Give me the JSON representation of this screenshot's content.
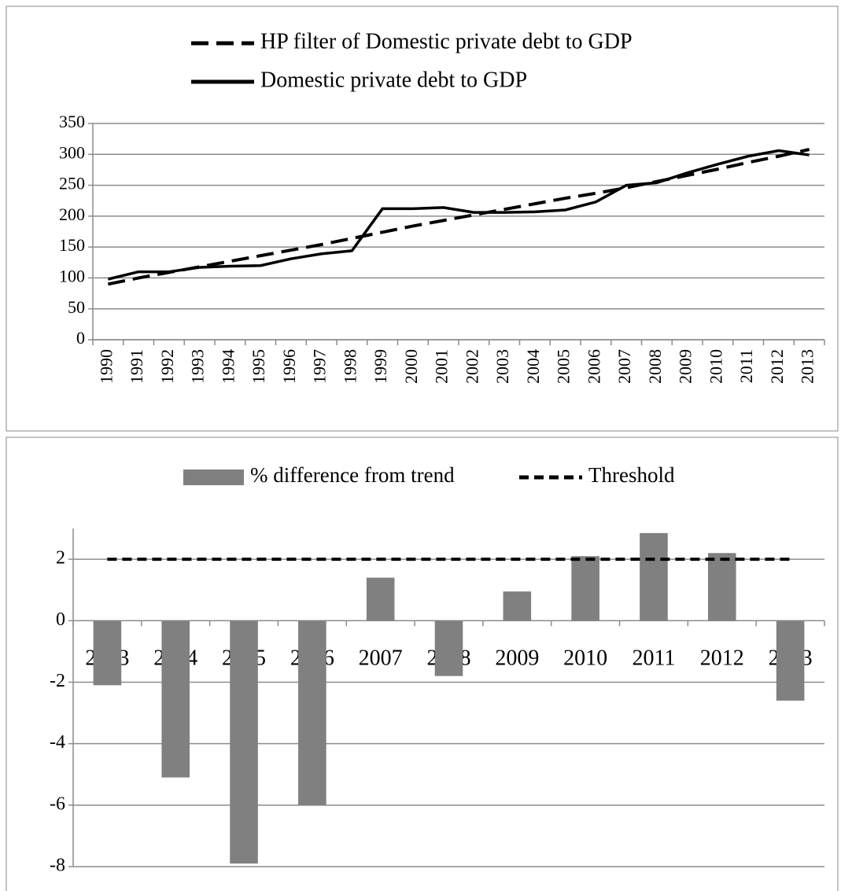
{
  "chart_data": [
    {
      "type": "line",
      "categories": [
        "1990",
        "1991",
        "1992",
        "1993",
        "1994",
        "1995",
        "1996",
        "1997",
        "1998",
        "1999",
        "2000",
        "2001",
        "2002",
        "2003",
        "2004",
        "2005",
        "2006",
        "2007",
        "2008",
        "2009",
        "2010",
        "2011",
        "2012",
        "2013"
      ],
      "series": [
        {
          "name": "HP filter of Domestic private debt to GDP",
          "color": "#000000",
          "dashed": true,
          "values": [
            90,
            100,
            109,
            118,
            127,
            136,
            145,
            154,
            164,
            174,
            184,
            193,
            202,
            211,
            220,
            229,
            237,
            246,
            256,
            266,
            276,
            287,
            297,
            308
          ]
        },
        {
          "name": "Domestic private debt to GDP",
          "color": "#000000",
          "dashed": false,
          "values": [
            98,
            110,
            110,
            117,
            119,
            120,
            131,
            139,
            144,
            212,
            212,
            214,
            206,
            206,
            207,
            210,
            223,
            250,
            254,
            270,
            284,
            297,
            306,
            299
          ]
        }
      ],
      "ylim": [
        0,
        350
      ],
      "yticks": [
        0,
        50,
        100,
        150,
        200,
        250,
        300,
        350
      ],
      "grid": true
    },
    {
      "type": "bar",
      "categories": [
        "2003",
        "2004",
        "2005",
        "2006",
        "2007",
        "2008",
        "2009",
        "2010",
        "2011",
        "2012",
        "2013"
      ],
      "series": [
        {
          "name": "% difference from trend",
          "type": "bar",
          "color": "#808080",
          "values": [
            -2.1,
            -5.1,
            -7.9,
            -6.0,
            1.4,
            -1.8,
            0.95,
            2.1,
            2.85,
            2.2,
            -2.6
          ]
        },
        {
          "name": "Threshold",
          "type": "line",
          "color": "#000000",
          "dashed": true,
          "values": [
            2,
            2,
            2,
            2,
            2,
            2,
            2,
            2,
            2,
            2,
            2
          ]
        }
      ],
      "ylim": [
        -8,
        3
      ],
      "yticks": [
        -8,
        -6,
        -4,
        -2,
        0,
        2
      ],
      "grid": true
    }
  ]
}
